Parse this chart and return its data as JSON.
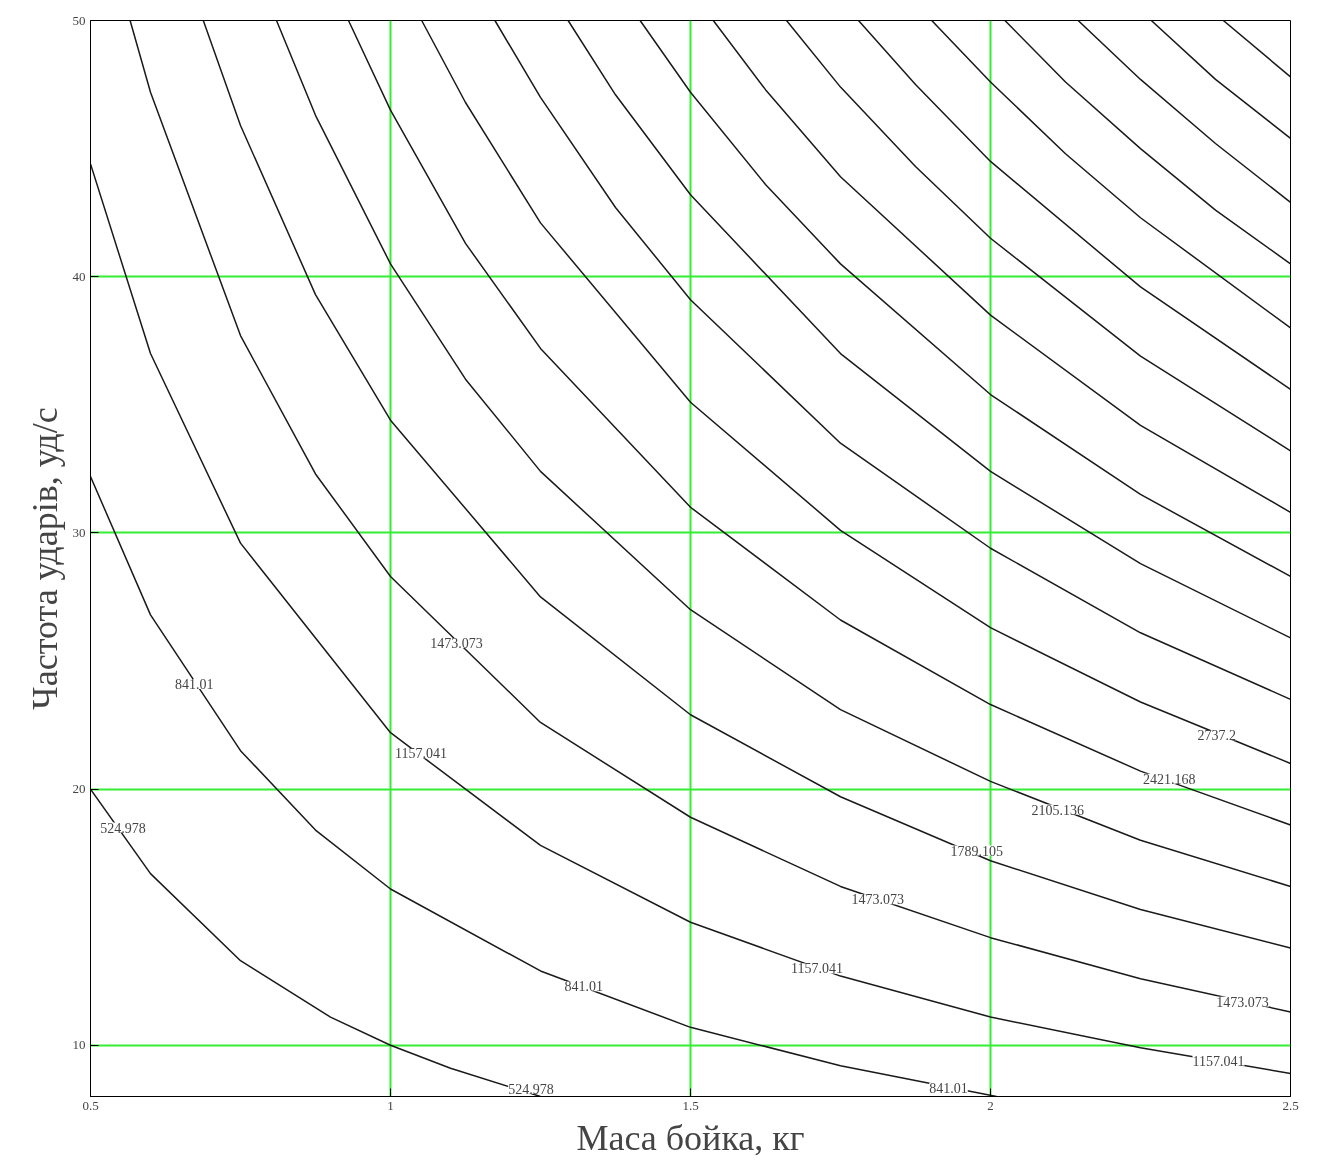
{
  "chart_data": {
    "type": "line",
    "xlabel": "Маса бойка, кг",
    "ylabel": "Частота ударів, уд/с",
    "xlim": [
      0.5,
      2.5
    ],
    "ylim": [
      8,
      50
    ],
    "xticks": [
      0.5,
      1,
      1.5,
      2,
      2.5
    ],
    "yticks": [
      10,
      20,
      30,
      40,
      50
    ],
    "grid": true,
    "marker": "none",
    "line_style": "solid",
    "series": [
      {
        "color": "#1a1a1a",
        "x": [
          0.5,
          0.6,
          0.75,
          0.9,
          1,
          1.1,
          1.25
        ],
        "values": [
          20,
          16.7,
          13.3,
          11.1,
          10,
          9.1,
          8
        ]
      },
      {
        "color": "#1a1a1a",
        "x": [
          0.5,
          0.6,
          0.75,
          0.875,
          1,
          1.25,
          1.5,
          1.75,
          2.01
        ],
        "values": [
          32.2,
          26.8,
          21.5,
          18.4,
          16.1,
          12.9,
          10.7,
          9.2,
          8
        ]
      },
      {
        "color": "#1a1a1a",
        "x": [
          0.5,
          0.6,
          0.75,
          1,
          1.25,
          1.5,
          1.75,
          2,
          2.25,
          2.5
        ],
        "values": [
          44.4,
          37,
          29.6,
          22.2,
          17.8,
          14.8,
          12.7,
          11.1,
          9.9,
          8.9
        ]
      },
      {
        "color": "#1a1a1a",
        "x": [
          0.566,
          0.6,
          0.75,
          0.875,
          1,
          1.25,
          1.5,
          1.75,
          2,
          2.25,
          2.5
        ],
        "values": [
          50,
          47.2,
          37.7,
          32.3,
          28.3,
          22.6,
          18.9,
          16.2,
          14.2,
          12.6,
          11.3
        ]
      },
      {
        "color": "#1a1a1a",
        "x": [
          0.688,
          0.75,
          0.875,
          1,
          1.25,
          1.5,
          1.75,
          2,
          2.25,
          2.5
        ],
        "values": [
          50,
          45.9,
          39.3,
          34.4,
          27.5,
          22.9,
          19.7,
          17.2,
          15.3,
          13.8
        ]
      },
      {
        "color": "#1a1a1a",
        "x": [
          0.81,
          0.875,
          1,
          1.125,
          1.25,
          1.5,
          1.75,
          2,
          2.25,
          2.5
        ],
        "values": [
          50,
          46.3,
          40.5,
          36,
          32.4,
          27,
          23.1,
          20.3,
          18,
          16.2
        ]
      },
      {
        "color": "#1a1a1a",
        "x": [
          0.93,
          1,
          1.125,
          1.25,
          1.5,
          1.75,
          2,
          2.25,
          2.5
        ],
        "values": [
          50,
          46.5,
          41.3,
          37.2,
          31,
          26.6,
          23.3,
          20.7,
          18.6
        ]
      },
      {
        "color": "#1a1a1a",
        "x": [
          1.052,
          1.125,
          1.25,
          1.5,
          1.75,
          2,
          2.25,
          2.5
        ],
        "values": [
          50,
          46.8,
          42.1,
          35.1,
          30.1,
          26.3,
          23.4,
          21
        ]
      },
      {
        "color": "#1a1a1a",
        "x": [
          1.174,
          1.25,
          1.375,
          1.5,
          1.75,
          2,
          2.25,
          2.5
        ],
        "values": [
          50,
          47,
          42.7,
          39.1,
          33.5,
          29.4,
          26.1,
          23.5
        ]
      },
      {
        "color": "#1a1a1a",
        "x": [
          1.296,
          1.375,
          1.5,
          1.75,
          2,
          2.25,
          2.5
        ],
        "values": [
          50,
          47.1,
          43.2,
          37,
          32.4,
          28.8,
          25.9
        ]
      },
      {
        "color": "#1a1a1a",
        "x": [
          1.416,
          1.5,
          1.625,
          1.75,
          2,
          2.25,
          2.5
        ],
        "values": [
          50,
          47.2,
          43.6,
          40.5,
          35.4,
          31.5,
          28.3
        ]
      },
      {
        "color": "#1a1a1a",
        "x": [
          1.538,
          1.625,
          1.75,
          2,
          2.25,
          2.5
        ],
        "values": [
          50,
          47.3,
          43.9,
          38.5,
          34.2,
          30.8
        ]
      },
      {
        "color": "#1a1a1a",
        "x": [
          1.66,
          1.75,
          1.875,
          2,
          2.25,
          2.5
        ],
        "values": [
          50,
          47.4,
          44.3,
          41.5,
          36.9,
          33.2
        ]
      },
      {
        "color": "#1a1a1a",
        "x": [
          1.78,
          1.875,
          2,
          2.25,
          2.5
        ],
        "values": [
          50,
          47.5,
          44.5,
          39.6,
          35.6
        ]
      },
      {
        "color": "#1a1a1a",
        "x": [
          1.902,
          2,
          2.125,
          2.25,
          2.5
        ],
        "values": [
          50,
          47.6,
          44.8,
          42.3,
          38
        ]
      },
      {
        "color": "#1a1a1a",
        "x": [
          2.024,
          2.125,
          2.25,
          2.375,
          2.5
        ],
        "values": [
          50,
          47.6,
          45,
          42.6,
          40.5
        ]
      },
      {
        "color": "#1a1a1a",
        "x": [
          2.146,
          2.25,
          2.375,
          2.5
        ],
        "values": [
          50,
          47.7,
          45.2,
          42.9
        ]
      },
      {
        "color": "#1a1a1a",
        "x": [
          2.268,
          2.375,
          2.5
        ],
        "values": [
          50,
          47.7,
          45.4
        ]
      },
      {
        "color": "#1a1a1a",
        "x": [
          2.388,
          2.5
        ],
        "values": [
          50,
          47.8
        ]
      }
    ],
    "annotations": [
      {
        "text": "524.978",
        "x": 0.554,
        "y": 18.5
      },
      {
        "text": "524.978",
        "x": 1.234,
        "y": 8.3
      },
      {
        "text": "841.01",
        "x": 0.673,
        "y": 24.1
      },
      {
        "text": "841.01",
        "x": 1.322,
        "y": 12.3
      },
      {
        "text": "841.01",
        "x": 1.93,
        "y": 8.35
      },
      {
        "text": "1157.041",
        "x": 1.051,
        "y": 21.4
      },
      {
        "text": "1157.041",
        "x": 1.711,
        "y": 13
      },
      {
        "text": "1157.041",
        "x": 2.38,
        "y": 9.4
      },
      {
        "text": "1473.073",
        "x": 1.11,
        "y": 25.7
      },
      {
        "text": "1473.073",
        "x": 1.812,
        "y": 15.7
      },
      {
        "text": "1473.073",
        "x": 2.42,
        "y": 11.7
      },
      {
        "text": "1789.105",
        "x": 1.977,
        "y": 17.6
      },
      {
        "text": "2105.136",
        "x": 2.112,
        "y": 19.2
      },
      {
        "text": "2421.168",
        "x": 2.298,
        "y": 20.4
      },
      {
        "text": "2737.2",
        "x": 2.377,
        "y": 22.1
      }
    ]
  }
}
